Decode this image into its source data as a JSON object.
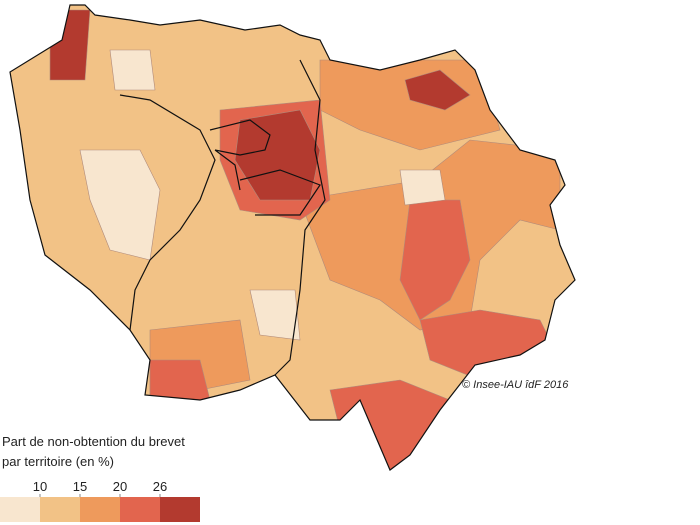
{
  "map": {
    "legend": {
      "title_lines": [
        "Part de non-obtention du brevet",
        "par territoire (en %)"
      ],
      "breaks": [
        10,
        15,
        20,
        26
      ],
      "colors": [
        "#f8e6cf",
        "#f2c286",
        "#ee9a5c",
        "#e2654e",
        "#b33a2f"
      ]
    },
    "credit": "© Insee-IAU îdF 2016"
  }
}
